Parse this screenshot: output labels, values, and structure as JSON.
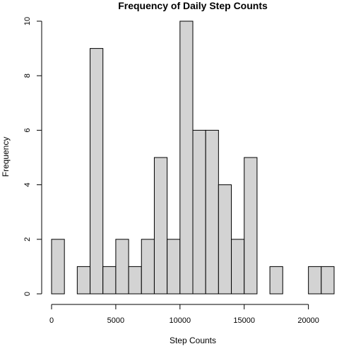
{
  "chart_data": {
    "type": "bar",
    "title": "Frequency of Daily Step Counts",
    "xlabel": "Step Counts",
    "ylabel": "Frequency",
    "bin_width": 1000,
    "bins": [
      {
        "start": 0,
        "end": 1000,
        "count": 2
      },
      {
        "start": 1000,
        "end": 2000,
        "count": 0
      },
      {
        "start": 2000,
        "end": 3000,
        "count": 1
      },
      {
        "start": 3000,
        "end": 4000,
        "count": 9
      },
      {
        "start": 4000,
        "end": 5000,
        "count": 1
      },
      {
        "start": 5000,
        "end": 6000,
        "count": 2
      },
      {
        "start": 6000,
        "end": 7000,
        "count": 1
      },
      {
        "start": 7000,
        "end": 8000,
        "count": 2
      },
      {
        "start": 8000,
        "end": 9000,
        "count": 5
      },
      {
        "start": 9000,
        "end": 10000,
        "count": 2
      },
      {
        "start": 10000,
        "end": 11000,
        "count": 10
      },
      {
        "start": 11000,
        "end": 12000,
        "count": 6
      },
      {
        "start": 12000,
        "end": 13000,
        "count": 6
      },
      {
        "start": 13000,
        "end": 14000,
        "count": 4
      },
      {
        "start": 14000,
        "end": 15000,
        "count": 2
      },
      {
        "start": 15000,
        "end": 16000,
        "count": 5
      },
      {
        "start": 16000,
        "end": 17000,
        "count": 0
      },
      {
        "start": 17000,
        "end": 18000,
        "count": 1
      },
      {
        "start": 18000,
        "end": 19000,
        "count": 0
      },
      {
        "start": 19000,
        "end": 20000,
        "count": 0
      },
      {
        "start": 20000,
        "end": 21000,
        "count": 1
      },
      {
        "start": 21000,
        "end": 22000,
        "count": 1
      }
    ],
    "xlim": [
      0,
      22000
    ],
    "ylim": [
      0,
      10
    ],
    "x_ticks": [
      0,
      5000,
      10000,
      15000,
      20000
    ],
    "y_ticks": [
      0,
      2,
      4,
      6,
      8,
      10
    ],
    "grid": false,
    "colors": {
      "bar_fill": "#d3d3d3",
      "bar_stroke": "#000000"
    }
  }
}
